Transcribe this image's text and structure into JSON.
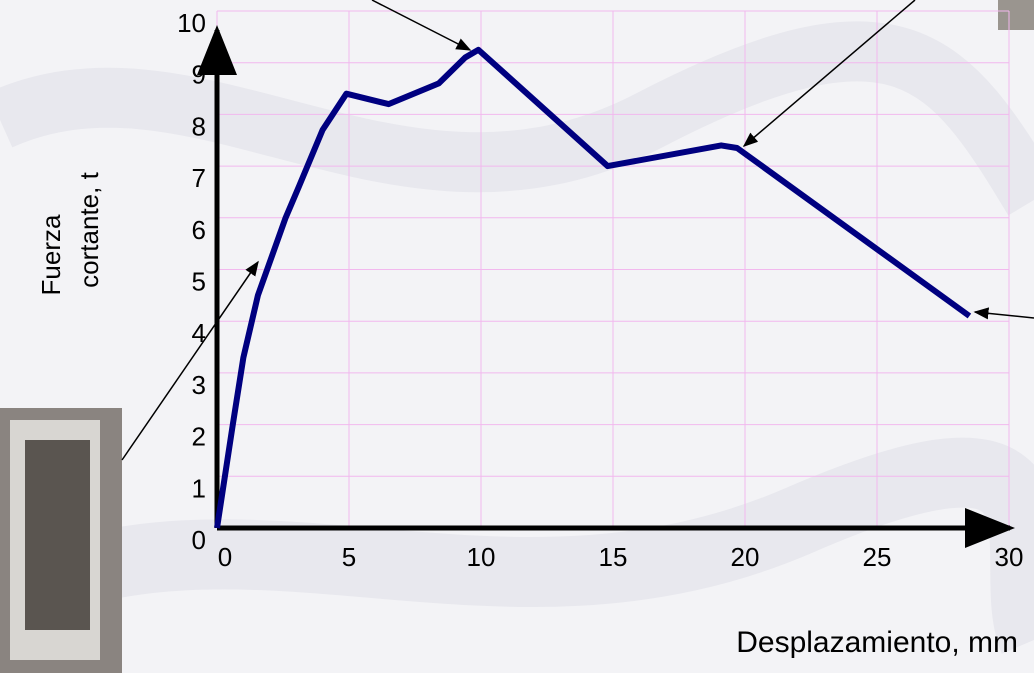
{
  "chart_data": {
    "type": "line",
    "ylabel": [
      "Fuerza",
      "cortante, t"
    ],
    "xlabel": "Desplazamiento,  mm",
    "x": [
      0,
      0.6,
      1.0,
      1.55,
      2.6,
      3.1,
      4.0,
      4.9,
      6.5,
      8.4,
      9.4,
      9.9,
      14.8,
      19.1,
      19.7,
      28.5
    ],
    "values": [
      0,
      2.0,
      3.3,
      4.5,
      6.0,
      6.6,
      7.7,
      8.4,
      8.2,
      8.6,
      9.1,
      9.25,
      7.0,
      7.4,
      7.35,
      4.1
    ],
    "color": "#000080",
    "xlim": [
      0,
      30
    ],
    "ylim": [
      0,
      10
    ],
    "xticks": [
      0,
      5,
      10,
      15,
      20,
      25,
      30
    ],
    "yticks": [
      0,
      1,
      2,
      3,
      4,
      5,
      6,
      7,
      8,
      9,
      10
    ],
    "grid": true,
    "grid_color": "#f2b8ee"
  }
}
